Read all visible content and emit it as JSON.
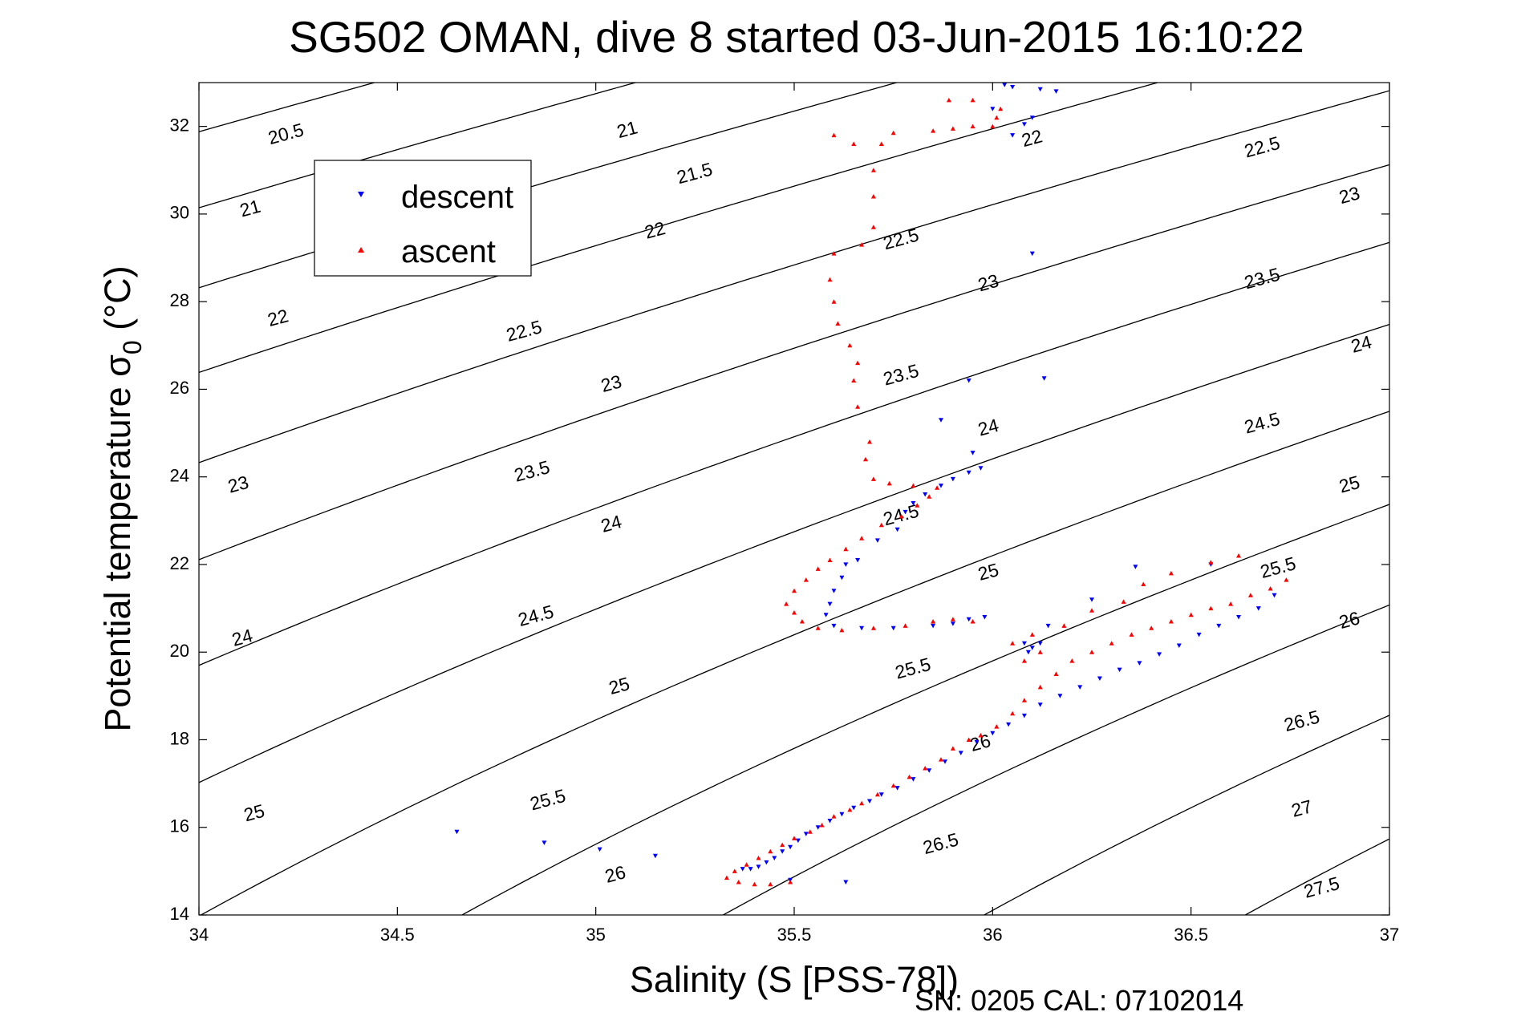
{
  "chart_data": {
    "type": "scatter",
    "title": "SG502 OMAN, dive 8 started 03-Jun-2015 16:10:22",
    "xlabel": "Salinity (S [PSS-78])",
    "ylabel": "Potential temperature σ",
    "ylabel_subscript": "0",
    "ylabel_unit": " (°C)",
    "footnote": "SN: 0205  CAL: 07102014",
    "xlim": [
      34,
      37
    ],
    "ylim": [
      14,
      33
    ],
    "xticks": [
      34,
      34.5,
      35,
      35.5,
      36,
      36.5,
      37
    ],
    "xtick_labels": [
      "34",
      "34.5",
      "35",
      "35.5",
      "36",
      "36.5",
      "37"
    ],
    "yticks": [
      14,
      16,
      18,
      20,
      22,
      24,
      26,
      28,
      30,
      32
    ],
    "ytick_labels": [
      "14",
      "16",
      "18",
      "20",
      "22",
      "24",
      "26",
      "28",
      "30",
      "32"
    ],
    "grid": false,
    "legend_position": "upper-left",
    "isopycnals": {
      "model": "sigma ≈ 24.7 - 0.20(T-20) - 0.004(T-20)^2 + 0.76(S-35)",
      "levels": [
        20.5,
        21,
        21.5,
        22,
        22.5,
        23,
        23.5,
        24,
        24.5,
        25,
        25.5,
        26,
        26.5,
        27,
        27.5
      ],
      "color": "#000000",
      "labels": [
        {
          "text": "20.5",
          "S": 34.22,
          "T": 31.8
        },
        {
          "text": "21",
          "S": 35.08,
          "T": 31.9
        },
        {
          "text": "22",
          "S": 36.1,
          "T": 31.7
        },
        {
          "text": "21",
          "S": 34.13,
          "T": 30.1
        },
        {
          "text": "21.5",
          "S": 35.25,
          "T": 30.9
        },
        {
          "text": "22.5",
          "S": 36.68,
          "T": 31.5
        },
        {
          "text": "22",
          "S": 35.15,
          "T": 29.6
        },
        {
          "text": "22.5",
          "S": 35.77,
          "T": 29.4
        },
        {
          "text": "23",
          "S": 36.9,
          "T": 30.4
        },
        {
          "text": "22",
          "S": 34.2,
          "T": 27.6
        },
        {
          "text": "22.5",
          "S": 34.82,
          "T": 27.3
        },
        {
          "text": "23",
          "S": 35.99,
          "T": 28.4
        },
        {
          "text": "23.5",
          "S": 36.68,
          "T": 28.5
        },
        {
          "text": "23",
          "S": 35.04,
          "T": 26.1
        },
        {
          "text": "23.5",
          "S": 35.77,
          "T": 26.3
        },
        {
          "text": "24",
          "S": 36.93,
          "T": 27.0
        },
        {
          "text": "24",
          "S": 35.99,
          "T": 25.1
        },
        {
          "text": "24.5",
          "S": 36.68,
          "T": 25.2
        },
        {
          "text": "23",
          "S": 34.1,
          "T": 23.8
        },
        {
          "text": "23.5",
          "S": 34.84,
          "T": 24.1
        },
        {
          "text": "25",
          "S": 36.9,
          "T": 23.8
        },
        {
          "text": "24",
          "S": 35.04,
          "T": 22.9
        },
        {
          "text": "24.5",
          "S": 35.77,
          "T": 23.1
        },
        {
          "text": "25",
          "S": 35.99,
          "T": 21.8
        },
        {
          "text": "25.5",
          "S": 36.72,
          "T": 21.9
        },
        {
          "text": "24",
          "S": 34.11,
          "T": 20.3
        },
        {
          "text": "24.5",
          "S": 34.85,
          "T": 20.8
        },
        {
          "text": "26",
          "S": 36.9,
          "T": 20.7
        },
        {
          "text": "25.5",
          "S": 35.8,
          "T": 19.6
        },
        {
          "text": "25",
          "S": 35.06,
          "T": 19.2
        },
        {
          "text": "26.5",
          "S": 36.78,
          "T": 18.4
        },
        {
          "text": "26",
          "S": 35.97,
          "T": 17.9
        },
        {
          "text": "25.5",
          "S": 34.88,
          "T": 16.6
        },
        {
          "text": "27",
          "S": 36.78,
          "T": 16.4
        },
        {
          "text": "25",
          "S": 34.14,
          "T": 16.3
        },
        {
          "text": "26.5",
          "S": 35.87,
          "T": 15.6
        },
        {
          "text": "26",
          "S": 35.05,
          "T": 14.9
        },
        {
          "text": "27.5",
          "S": 36.83,
          "T": 14.6
        }
      ]
    },
    "series": [
      {
        "name": "descent",
        "marker": "triangle-down",
        "color": "#0000ff",
        "points": [
          [
            34.65,
            15.9
          ],
          [
            34.87,
            15.65
          ],
          [
            35.01,
            15.5
          ],
          [
            35.15,
            15.35
          ],
          [
            35.49,
            14.8
          ],
          [
            35.63,
            14.75
          ],
          [
            35.37,
            15.05
          ],
          [
            35.39,
            15.05
          ],
          [
            35.41,
            15.1
          ],
          [
            35.43,
            15.2
          ],
          [
            35.45,
            15.3
          ],
          [
            35.47,
            15.45
          ],
          [
            35.49,
            15.55
          ],
          [
            35.51,
            15.7
          ],
          [
            35.53,
            15.85
          ],
          [
            35.56,
            16.0
          ],
          [
            35.59,
            16.15
          ],
          [
            35.62,
            16.3
          ],
          [
            35.65,
            16.45
          ],
          [
            35.69,
            16.6
          ],
          [
            35.72,
            16.75
          ],
          [
            35.76,
            16.9
          ],
          [
            35.8,
            17.1
          ],
          [
            35.84,
            17.3
          ],
          [
            35.88,
            17.5
          ],
          [
            35.92,
            17.7
          ],
          [
            35.96,
            17.95
          ],
          [
            36.0,
            18.15
          ],
          [
            36.04,
            18.35
          ],
          [
            36.08,
            18.55
          ],
          [
            36.12,
            18.8
          ],
          [
            36.17,
            19.0
          ],
          [
            36.22,
            19.2
          ],
          [
            36.27,
            19.4
          ],
          [
            36.32,
            19.6
          ],
          [
            36.37,
            19.75
          ],
          [
            36.42,
            19.95
          ],
          [
            36.47,
            20.15
          ],
          [
            36.52,
            20.4
          ],
          [
            36.57,
            20.6
          ],
          [
            36.62,
            20.8
          ],
          [
            36.67,
            21.0
          ],
          [
            36.71,
            21.3
          ],
          [
            36.55,
            22.0
          ],
          [
            36.36,
            21.95
          ],
          [
            36.25,
            21.2
          ],
          [
            36.14,
            20.6
          ],
          [
            36.08,
            20.2
          ],
          [
            36.1,
            20.1
          ],
          [
            36.12,
            20.2
          ],
          [
            36.09,
            20.0
          ],
          [
            35.98,
            20.8
          ],
          [
            35.94,
            20.75
          ],
          [
            35.9,
            20.65
          ],
          [
            35.85,
            20.6
          ],
          [
            35.75,
            20.55
          ],
          [
            35.67,
            20.55
          ],
          [
            35.6,
            20.6
          ],
          [
            35.58,
            20.85
          ],
          [
            35.59,
            21.1
          ],
          [
            35.6,
            21.4
          ],
          [
            35.62,
            21.7
          ],
          [
            35.63,
            22.0
          ],
          [
            35.66,
            22.1
          ],
          [
            35.71,
            22.55
          ],
          [
            35.76,
            22.8
          ],
          [
            35.78,
            23.2
          ],
          [
            35.8,
            23.4
          ],
          [
            35.83,
            23.6
          ],
          [
            35.87,
            23.8
          ],
          [
            35.9,
            23.95
          ],
          [
            35.94,
            24.1
          ],
          [
            35.97,
            24.2
          ],
          [
            35.95,
            24.55
          ],
          [
            35.87,
            25.3
          ],
          [
            35.94,
            26.2
          ],
          [
            36.13,
            26.25
          ],
          [
            36.1,
            29.1
          ],
          [
            36.05,
            31.8
          ],
          [
            36.08,
            32.05
          ],
          [
            36.1,
            32.2
          ],
          [
            36.0,
            32.4
          ],
          [
            36.05,
            32.9
          ],
          [
            36.12,
            32.85
          ],
          [
            36.16,
            32.8
          ],
          [
            36.03,
            32.95
          ]
        ]
      },
      {
        "name": "ascent",
        "marker": "triangle-up",
        "color": "#ff0000",
        "points": [
          [
            35.33,
            14.85
          ],
          [
            35.36,
            14.75
          ],
          [
            35.4,
            14.7
          ],
          [
            35.44,
            14.7
          ],
          [
            35.49,
            14.75
          ],
          [
            35.35,
            15.0
          ],
          [
            35.38,
            15.15
          ],
          [
            35.41,
            15.3
          ],
          [
            35.44,
            15.45
          ],
          [
            35.47,
            15.6
          ],
          [
            35.5,
            15.75
          ],
          [
            35.54,
            15.9
          ],
          [
            35.57,
            16.05
          ],
          [
            35.6,
            16.25
          ],
          [
            35.64,
            16.4
          ],
          [
            35.67,
            16.55
          ],
          [
            35.71,
            16.75
          ],
          [
            35.75,
            16.95
          ],
          [
            35.79,
            17.15
          ],
          [
            35.83,
            17.35
          ],
          [
            35.87,
            17.55
          ],
          [
            35.9,
            17.8
          ],
          [
            35.94,
            18.0
          ],
          [
            35.97,
            18.1
          ],
          [
            36.01,
            18.3
          ],
          [
            36.05,
            18.6
          ],
          [
            36.08,
            18.9
          ],
          [
            36.12,
            19.2
          ],
          [
            36.16,
            19.5
          ],
          [
            36.2,
            19.8
          ],
          [
            36.25,
            20.0
          ],
          [
            36.3,
            20.2
          ],
          [
            36.35,
            20.4
          ],
          [
            36.4,
            20.55
          ],
          [
            36.45,
            20.7
          ],
          [
            36.5,
            20.85
          ],
          [
            36.55,
            21.0
          ],
          [
            36.6,
            21.1
          ],
          [
            36.65,
            21.3
          ],
          [
            36.7,
            21.45
          ],
          [
            36.74,
            21.65
          ],
          [
            36.62,
            22.2
          ],
          [
            36.55,
            22.05
          ],
          [
            36.45,
            21.8
          ],
          [
            36.38,
            21.55
          ],
          [
            36.33,
            21.15
          ],
          [
            36.25,
            20.95
          ],
          [
            36.18,
            20.6
          ],
          [
            36.1,
            20.4
          ],
          [
            36.05,
            20.2
          ],
          [
            36.12,
            20.0
          ],
          [
            36.08,
            19.8
          ],
          [
            35.95,
            20.7
          ],
          [
            35.9,
            20.75
          ],
          [
            35.85,
            20.7
          ],
          [
            35.78,
            20.6
          ],
          [
            35.7,
            20.55
          ],
          [
            35.62,
            20.5
          ],
          [
            35.56,
            20.55
          ],
          [
            35.52,
            20.7
          ],
          [
            35.5,
            20.9
          ],
          [
            35.48,
            21.1
          ],
          [
            35.5,
            21.4
          ],
          [
            35.53,
            21.65
          ],
          [
            35.56,
            21.9
          ],
          [
            35.59,
            22.1
          ],
          [
            35.63,
            22.35
          ],
          [
            35.67,
            22.6
          ],
          [
            35.72,
            22.9
          ],
          [
            35.77,
            23.1
          ],
          [
            35.81,
            23.35
          ],
          [
            35.84,
            23.55
          ],
          [
            35.86,
            23.75
          ],
          [
            35.8,
            23.8
          ],
          [
            35.74,
            23.85
          ],
          [
            35.7,
            23.95
          ],
          [
            35.68,
            24.4
          ],
          [
            35.69,
            24.8
          ],
          [
            35.66,
            25.6
          ],
          [
            35.65,
            26.2
          ],
          [
            35.66,
            26.6
          ],
          [
            35.64,
            27.0
          ],
          [
            35.61,
            27.5
          ],
          [
            35.6,
            28.0
          ],
          [
            35.59,
            28.5
          ],
          [
            35.6,
            29.1
          ],
          [
            35.67,
            29.3
          ],
          [
            35.7,
            29.7
          ],
          [
            35.7,
            30.4
          ],
          [
            35.7,
            31.0
          ],
          [
            35.72,
            31.6
          ],
          [
            35.65,
            31.6
          ],
          [
            35.6,
            31.8
          ],
          [
            35.75,
            31.85
          ],
          [
            35.85,
            31.9
          ],
          [
            35.9,
            31.95
          ],
          [
            35.95,
            32.0
          ],
          [
            36.0,
            32.0
          ],
          [
            36.01,
            32.2
          ],
          [
            36.02,
            32.4
          ],
          [
            35.95,
            32.6
          ],
          [
            35.89,
            32.6
          ]
        ]
      }
    ]
  }
}
